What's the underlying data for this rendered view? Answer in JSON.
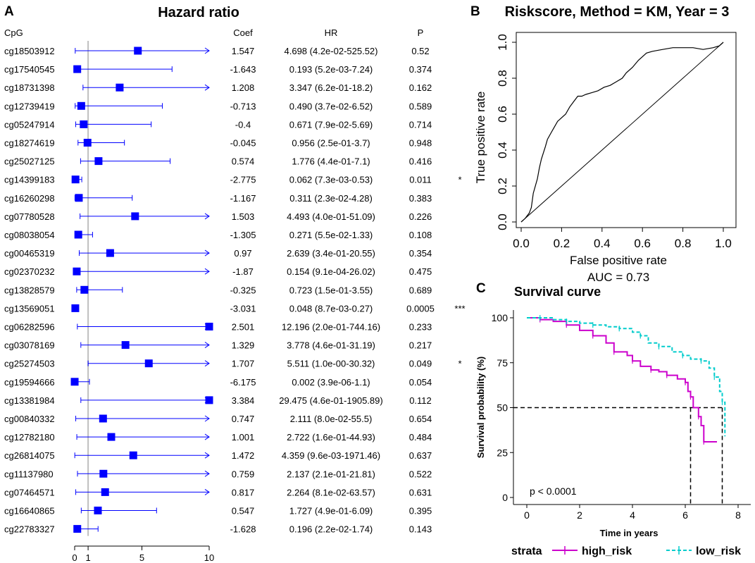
{
  "panel_labels": {
    "a": "A",
    "b": "B",
    "c": "C"
  },
  "colors": {
    "forest": "#0000ff",
    "reference_line": "#bfbfbf",
    "high_risk": "#cc00cc",
    "low_risk": "#00cccc",
    "axis": "#000000"
  },
  "chart_data": [
    {
      "id": "forest",
      "type": "table",
      "title": "Hazard ratio",
      "headers": {
        "cpg": "CpG",
        "coef": "Coef",
        "hr": "HR",
        "p": "P"
      },
      "x_ticks": [
        "0",
        "1",
        "5",
        "10"
      ],
      "x_range": [
        0,
        10
      ],
      "reference_value": 1,
      "rows": [
        {
          "cpg": "cg18503912",
          "coef": "1.547",
          "hr_text": "4.698 (4.2e-02-525.52)",
          "p": "0.52",
          "sig": "",
          "hr": 4.698,
          "lo": 0.042,
          "hi": 525.52
        },
        {
          "cpg": "cg17540545",
          "coef": "-1.643",
          "hr_text": "0.193 (5.2e-03-7.24)",
          "p": "0.374",
          "sig": "",
          "hr": 0.193,
          "lo": 0.0052,
          "hi": 7.24
        },
        {
          "cpg": "cg18731398",
          "coef": "1.208",
          "hr_text": "3.347 (6.2e-01-18.2)",
          "p": "0.162",
          "sig": "",
          "hr": 3.347,
          "lo": 0.62,
          "hi": 18.2
        },
        {
          "cpg": "cg12739419",
          "coef": "-0.713",
          "hr_text": "0.490 (3.7e-02-6.52)",
          "p": "0.589",
          "sig": "",
          "hr": 0.49,
          "lo": 0.037,
          "hi": 6.52
        },
        {
          "cpg": "cg05247914",
          "coef": "-0.4",
          "hr_text": "0.671 (7.9e-02-5.69)",
          "p": "0.714",
          "sig": "",
          "hr": 0.671,
          "lo": 0.079,
          "hi": 5.69
        },
        {
          "cpg": "cg18274619",
          "coef": "-0.045",
          "hr_text": "0.956 (2.5e-01-3.7)",
          "p": "0.948",
          "sig": "",
          "hr": 0.956,
          "lo": 0.25,
          "hi": 3.7
        },
        {
          "cpg": "cg25027125",
          "coef": "0.574",
          "hr_text": "1.776 (4.4e-01-7.1)",
          "p": "0.416",
          "sig": "",
          "hr": 1.776,
          "lo": 0.44,
          "hi": 7.1
        },
        {
          "cpg": "cg14399183",
          "coef": "-2.775",
          "hr_text": "0.062 (7.3e-03-0.53)",
          "p": "0.011",
          "sig": "*",
          "hr": 0.062,
          "lo": 0.0073,
          "hi": 0.53
        },
        {
          "cpg": "cg16260298",
          "coef": "-1.167",
          "hr_text": "0.311 (2.3e-02-4.28)",
          "p": "0.383",
          "sig": "",
          "hr": 0.311,
          "lo": 0.023,
          "hi": 4.28
        },
        {
          "cpg": "cg07780528",
          "coef": "1.503",
          "hr_text": "4.493 (4.0e-01-51.09)",
          "p": "0.226",
          "sig": "",
          "hr": 4.493,
          "lo": 0.4,
          "hi": 51.09
        },
        {
          "cpg": "cg08038054",
          "coef": "-1.305",
          "hr_text": "0.271 (5.5e-02-1.33)",
          "p": "0.108",
          "sig": "",
          "hr": 0.271,
          "lo": 0.055,
          "hi": 1.33
        },
        {
          "cpg": "cg00465319",
          "coef": "0.97",
          "hr_text": "2.639 (3.4e-01-20.55)",
          "p": "0.354",
          "sig": "",
          "hr": 2.639,
          "lo": 0.34,
          "hi": 20.55
        },
        {
          "cpg": "cg02370232",
          "coef": "-1.87",
          "hr_text": "0.154 (9.1e-04-26.02)",
          "p": "0.475",
          "sig": "",
          "hr": 0.154,
          "lo": 0.00091,
          "hi": 26.02
        },
        {
          "cpg": "cg13828579",
          "coef": "-0.325",
          "hr_text": "0.723 (1.5e-01-3.55)",
          "p": "0.689",
          "sig": "",
          "hr": 0.723,
          "lo": 0.15,
          "hi": 3.55
        },
        {
          "cpg": "cg13569051",
          "coef": "-3.031",
          "hr_text": "0.048 (8.7e-03-0.27)",
          "p": "0.0005",
          "sig": "***",
          "hr": 0.048,
          "lo": 0.0087,
          "hi": 0.27
        },
        {
          "cpg": "cg06282596",
          "coef": "2.501",
          "hr_text": "12.196 (2.0e-01-744.16)",
          "p": "0.233",
          "sig": "",
          "hr": 12.196,
          "lo": 0.2,
          "hi": 744.16
        },
        {
          "cpg": "cg03078169",
          "coef": "1.329",
          "hr_text": "3.778 (4.6e-01-31.19)",
          "p": "0.217",
          "sig": "",
          "hr": 3.778,
          "lo": 0.46,
          "hi": 31.19
        },
        {
          "cpg": "cg25274503",
          "coef": "1.707",
          "hr_text": "5.511 (1.0e-00-30.32)",
          "p": "0.049",
          "sig": "*",
          "hr": 5.511,
          "lo": 1.0,
          "hi": 30.32
        },
        {
          "cpg": "cg19594666",
          "coef": "-6.175",
          "hr_text": "0.002 (3.9e-06-1.1)",
          "p": "0.054",
          "sig": "",
          "hr": 0.002,
          "lo": 3.9e-06,
          "hi": 1.1
        },
        {
          "cpg": "cg13381984",
          "coef": "3.384",
          "hr_text": "29.475 (4.6e-01-1905.89)",
          "p": "0.112",
          "sig": "",
          "hr": 29.475,
          "lo": 0.46,
          "hi": 1905.89
        },
        {
          "cpg": "cg00840332",
          "coef": "0.747",
          "hr_text": "2.111 (8.0e-02-55.5)",
          "p": "0.654",
          "sig": "",
          "hr": 2.111,
          "lo": 0.08,
          "hi": 55.5
        },
        {
          "cpg": "cg12782180",
          "coef": "1.001",
          "hr_text": "2.722 (1.6e-01-44.93)",
          "p": "0.484",
          "sig": "",
          "hr": 2.722,
          "lo": 0.16,
          "hi": 44.93
        },
        {
          "cpg": "cg26814075",
          "coef": "1.472",
          "hr_text": "4.359 (9.6e-03-1971.46)",
          "p": "0.637",
          "sig": "",
          "hr": 4.359,
          "lo": 0.0096,
          "hi": 1971.46
        },
        {
          "cpg": "cg11137980",
          "coef": "0.759",
          "hr_text": "2.137 (2.1e-01-21.81)",
          "p": "0.522",
          "sig": "",
          "hr": 2.137,
          "lo": 0.21,
          "hi": 21.81
        },
        {
          "cpg": "cg07464571",
          "coef": "0.817",
          "hr_text": "2.264 (8.1e-02-63.57)",
          "p": "0.631",
          "sig": "",
          "hr": 2.264,
          "lo": 0.081,
          "hi": 63.57
        },
        {
          "cpg": "cg16640865",
          "coef": "0.547",
          "hr_text": "1.727 (4.9e-01-6.09)",
          "p": "0.395",
          "sig": "",
          "hr": 1.727,
          "lo": 0.49,
          "hi": 6.09
        },
        {
          "cpg": "cg22783327",
          "coef": "-1.628",
          "hr_text": "0.196 (2.2e-02-1.74)",
          "p": "0.143",
          "sig": "",
          "hr": 0.196,
          "lo": 0.022,
          "hi": 1.74
        }
      ]
    },
    {
      "id": "roc",
      "type": "line",
      "title": "Riskscore, Method = KM, Year = 3",
      "xlabel": "False positive rate",
      "ylabel": "True positive rate",
      "xlim": [
        0,
        1
      ],
      "ylim": [
        0,
        1
      ],
      "x_ticks": [
        "0.0",
        "0.2",
        "0.4",
        "0.6",
        "0.8",
        "1.0"
      ],
      "y_ticks": [
        "0.0",
        "0.2",
        "0.4",
        "0.6",
        "0.8",
        "1.0"
      ],
      "auc_text": "AUC =  0.73",
      "curve": [
        [
          0,
          0
        ],
        [
          0.02,
          0.02
        ],
        [
          0.04,
          0.05
        ],
        [
          0.05,
          0.08
        ],
        [
          0.06,
          0.16
        ],
        [
          0.08,
          0.24
        ],
        [
          0.09,
          0.3
        ],
        [
          0.1,
          0.35
        ],
        [
          0.12,
          0.42
        ],
        [
          0.13,
          0.46
        ],
        [
          0.15,
          0.5
        ],
        [
          0.16,
          0.52
        ],
        [
          0.18,
          0.56
        ],
        [
          0.2,
          0.58
        ],
        [
          0.22,
          0.6
        ],
        [
          0.24,
          0.64
        ],
        [
          0.26,
          0.67
        ],
        [
          0.28,
          0.7
        ],
        [
          0.3,
          0.7
        ],
        [
          0.32,
          0.71
        ],
        [
          0.35,
          0.72
        ],
        [
          0.38,
          0.73
        ],
        [
          0.41,
          0.75
        ],
        [
          0.44,
          0.76
        ],
        [
          0.47,
          0.78
        ],
        [
          0.5,
          0.8
        ],
        [
          0.52,
          0.83
        ],
        [
          0.55,
          0.86
        ],
        [
          0.58,
          0.9
        ],
        [
          0.6,
          0.92
        ],
        [
          0.62,
          0.94
        ],
        [
          0.65,
          0.95
        ],
        [
          0.7,
          0.96
        ],
        [
          0.75,
          0.97
        ],
        [
          0.8,
          0.97
        ],
        [
          0.85,
          0.97
        ],
        [
          0.9,
          0.96
        ],
        [
          0.95,
          0.97
        ],
        [
          0.98,
          0.98
        ],
        [
          1,
          1
        ]
      ]
    },
    {
      "id": "survival",
      "type": "line",
      "title": "Survival curve",
      "xlabel": "Time in years",
      "ylabel": "Survival probability (%)",
      "xlim": [
        0,
        8.4
      ],
      "ylim": [
        0,
        100
      ],
      "x_ticks": [
        "0",
        "2",
        "4",
        "6",
        "8"
      ],
      "y_ticks": [
        "0",
        "25",
        "50",
        "75",
        "100"
      ],
      "pvalue": "p < 0.0001",
      "median_line": {
        "y": 50,
        "x_high": 6.2,
        "x_low": 7.4
      },
      "legend_title": "strata",
      "series": [
        {
          "name": "high_risk",
          "points": [
            [
              0,
              100
            ],
            [
              0.5,
              99
            ],
            [
              1,
              98
            ],
            [
              1.5,
              96
            ],
            [
              2,
              93
            ],
            [
              2.5,
              90
            ],
            [
              3,
              86
            ],
            [
              3.3,
              81
            ],
            [
              3.8,
              79
            ],
            [
              4,
              76
            ],
            [
              4.3,
              73
            ],
            [
              4.7,
              71
            ],
            [
              5,
              70
            ],
            [
              5.3,
              68
            ],
            [
              5.7,
              66
            ],
            [
              6,
              64
            ],
            [
              6.1,
              59
            ],
            [
              6.2,
              56
            ],
            [
              6.3,
              50
            ],
            [
              6.5,
              45
            ],
            [
              6.6,
              40
            ],
            [
              6.7,
              31
            ],
            [
              7.2,
              31
            ]
          ]
        },
        {
          "name": "low_risk",
          "points": [
            [
              0,
              100
            ],
            [
              0.5,
              100
            ],
            [
              1,
              99
            ],
            [
              1.5,
              98
            ],
            [
              2,
              97
            ],
            [
              2.5,
              96
            ],
            [
              3,
              95
            ],
            [
              3.5,
              94
            ],
            [
              4,
              92
            ],
            [
              4.3,
              90
            ],
            [
              4.6,
              86
            ],
            [
              5,
              84
            ],
            [
              5.5,
              81
            ],
            [
              5.9,
              79
            ],
            [
              6.2,
              77
            ],
            [
              6.6,
              76
            ],
            [
              6.9,
              72
            ],
            [
              7.1,
              67
            ],
            [
              7.3,
              59
            ],
            [
              7.4,
              53
            ],
            [
              7.5,
              34
            ]
          ]
        }
      ]
    }
  ]
}
